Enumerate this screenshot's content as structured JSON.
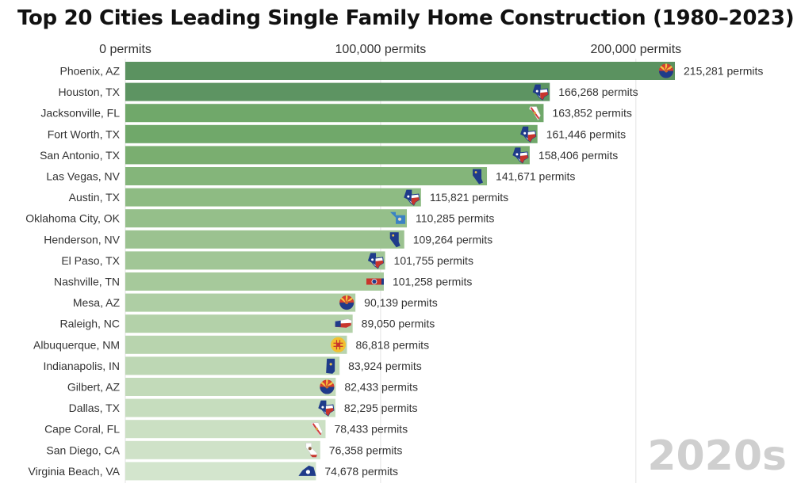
{
  "chart_data": {
    "type": "bar",
    "orientation": "horizontal",
    "title": "Top 20 Cities Leading Single Family Home Construction (1980–2023)",
    "period_label": "2020s",
    "xlim": [
      0,
      215281
    ],
    "x_ticks": [
      0,
      100000,
      200000
    ],
    "x_tick_labels": [
      "0 permits",
      "100,000 permits",
      "200,000 permits"
    ],
    "grid": true,
    "value_suffix": " permits",
    "categories": [
      "Phoenix, AZ",
      "Houston, TX",
      "Jacksonville, FL",
      "Fort Worth, TX",
      "San Antonio, TX",
      "Las Vegas, NV",
      "Austin, TX",
      "Oklahoma City, OK",
      "Henderson, NV",
      "El Paso, TX",
      "Nashville, TN",
      "Mesa, AZ",
      "Raleigh, NC",
      "Albuquerque, NM",
      "Indianapolis, IN",
      "Gilbert, AZ",
      "Dallas, TX",
      "Cape Coral, FL",
      "San Diego, CA",
      "Virginia Beach, VA"
    ],
    "values": [
      215281,
      166268,
      163852,
      161446,
      158406,
      141671,
      115821,
      110285,
      109264,
      101755,
      101258,
      90139,
      89050,
      86818,
      83924,
      82433,
      82295,
      78433,
      76358,
      74678
    ],
    "value_labels": [
      "215,281 permits",
      "166,268 permits",
      "163,852 permits",
      "161,446 permits",
      "158,406 permits",
      "141,671 permits",
      "115,821 permits",
      "110,285 permits",
      "109,264 permits",
      "101,755 permits",
      "101,258 permits",
      "90,139 permits",
      "89,050 permits",
      "86,818 permits",
      "83,924 permits",
      "82,433 permits",
      "82,295 permits",
      "78,433 permits",
      "76,358 permits",
      "74,678 permits"
    ],
    "colors": [
      "#5b9260",
      "#5d9462",
      "#70a86a",
      "#70a86a",
      "#7aae70",
      "#84b57a",
      "#8ebb83",
      "#95bf8a",
      "#9bc290",
      "#a1c696",
      "#a6c99b",
      "#aecea4",
      "#b3d1a9",
      "#b8d4ae",
      "#bdd7b4",
      "#c2dab9",
      "#c6ddbe",
      "#cbe0c3",
      "#cfe2c8",
      "#d3e5cd"
    ],
    "state_flags": [
      "AZ",
      "TX",
      "FL",
      "TX",
      "TX",
      "NV",
      "TX",
      "OK",
      "NV",
      "TX",
      "TN",
      "AZ",
      "NC",
      "NM",
      "IN",
      "AZ",
      "TX",
      "FL",
      "CA",
      "VA"
    ]
  }
}
